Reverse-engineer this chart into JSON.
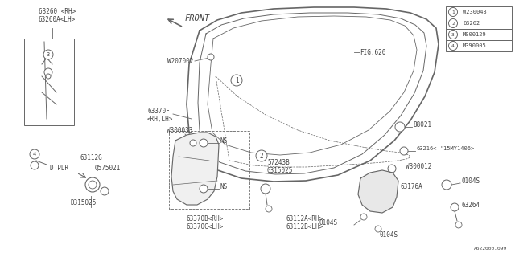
{
  "background_color": "#ffffff",
  "line_color": "#666666",
  "text_color": "#444444",
  "part_number_bottom_right": "A6220001099",
  "legend_items": [
    {
      "num": "1",
      "label": "W230043"
    },
    {
      "num": "2",
      "label": "63262"
    },
    {
      "num": "3",
      "label": "M000129"
    },
    {
      "num": "4",
      "label": "M390005"
    }
  ]
}
